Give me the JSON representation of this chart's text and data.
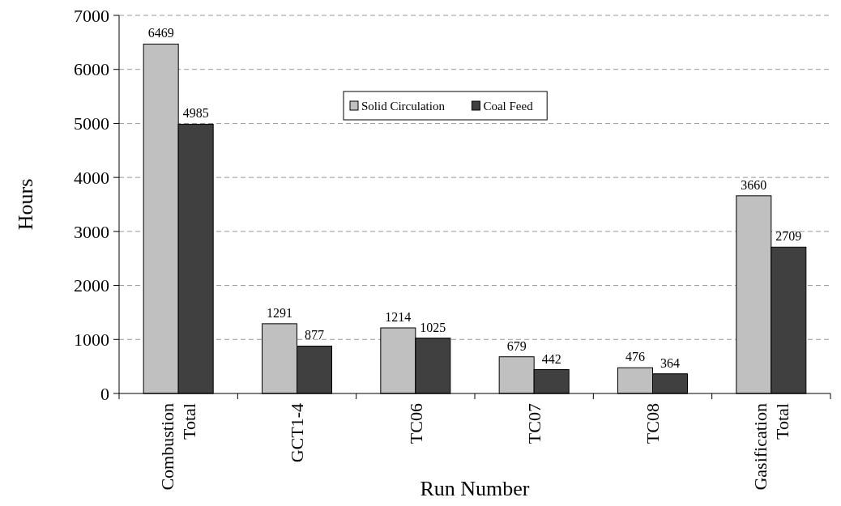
{
  "chart_data": {
    "type": "bar",
    "xlabel": "Run Number",
    "ylabel": "Hours",
    "categories": [
      "Combustion Total",
      "GCT1-4",
      "TC06",
      "TC07",
      "TC08",
      "Gasification Total"
    ],
    "series": [
      {
        "name": "Solid Circulation",
        "color": "#c0c0c0",
        "values": [
          6469,
          1291,
          1214,
          679,
          476,
          3660
        ]
      },
      {
        "name": "Coal Feed",
        "color": "#404040",
        "values": [
          4985,
          877,
          1025,
          442,
          364,
          2709
        ]
      }
    ],
    "ylim": [
      0,
      7000
    ],
    "yticks": [
      0,
      1000,
      2000,
      3000,
      4000,
      5000,
      6000,
      7000
    ],
    "grid": "y",
    "legend": "top",
    "data_labels": true
  }
}
